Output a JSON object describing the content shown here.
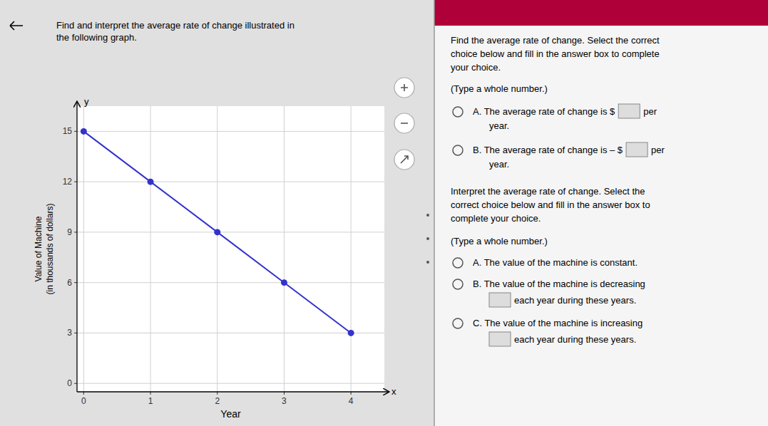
{
  "chart_data": {
    "type": "line",
    "title": "Find and interpret the average rate of change illustrated in\nthe following graph.",
    "x": [
      0,
      1,
      2,
      3,
      4
    ],
    "values": [
      15,
      12,
      9,
      6,
      3
    ],
    "color": "#3333cc",
    "marker": "circle",
    "xlim": [
      -0.1,
      4.5
    ],
    "ylim": [
      -0.5,
      16.5
    ],
    "xticks": [
      0,
      1,
      2,
      3,
      4
    ],
    "yticks": [
      0,
      3,
      6,
      9,
      12,
      15
    ],
    "x_label": "Year",
    "y_label": "Value of Machine\n(in thousands of dollars)",
    "grid": true,
    "annotations": [
      "x",
      "y",
      "Find the average rate of change. Select the correct\nchoice below and fill in the answer box to complete\nyour choice.",
      "(Type a whole number.)",
      "A.  The average rate of change is $",
      "per",
      "year.",
      "B.  The average rate of change is – $",
      "per",
      "year.",
      "Interpret the average rate of change. Select the\ncorrect choice below and fill in the answer box to\ncomplete your choice.",
      "(Type a whole number.)",
      "A.  The value of the machine is constant.",
      "B.  The value of the machine is decreasing",
      "each year during these years.",
      "C.  The value of the machine is increasing",
      "each year during these years."
    ]
  }
}
